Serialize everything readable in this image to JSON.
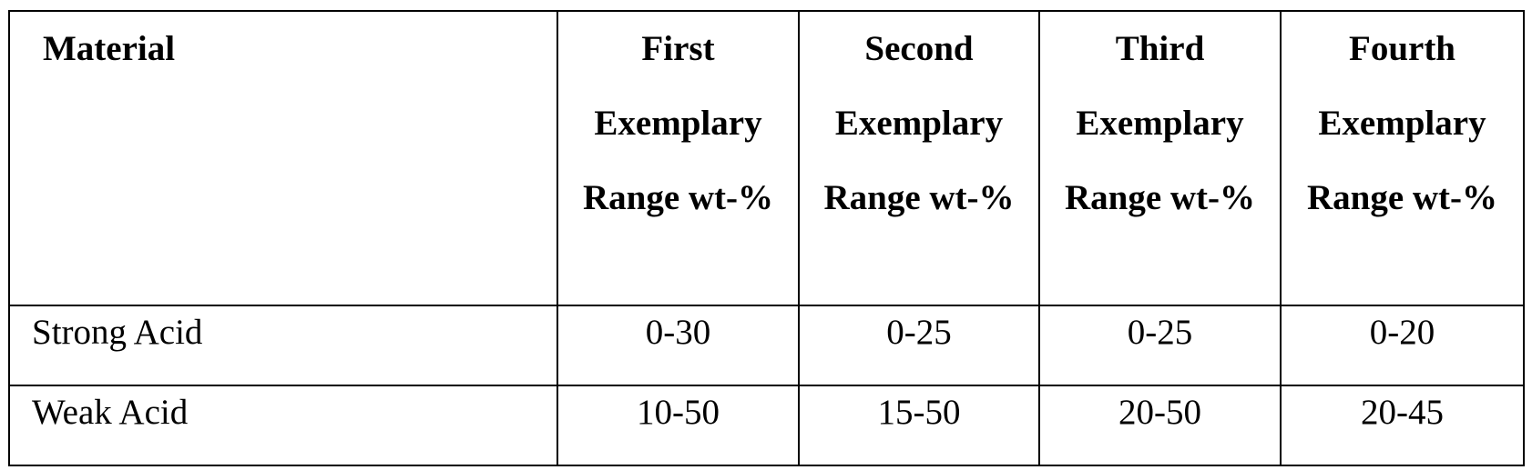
{
  "table": {
    "header": [
      "Material",
      "First Exemplary Range wt-%",
      "Second Exemplary Range wt-%",
      "Third Exemplary Range wt-%",
      "Fourth Exemplary Range wt-%"
    ],
    "rows": [
      [
        "Strong Acid",
        "0-30",
        "0-25",
        "0-25",
        "0-20"
      ],
      [
        "Weak Acid",
        "10-50",
        "15-50",
        "20-50",
        "20-45"
      ]
    ]
  }
}
